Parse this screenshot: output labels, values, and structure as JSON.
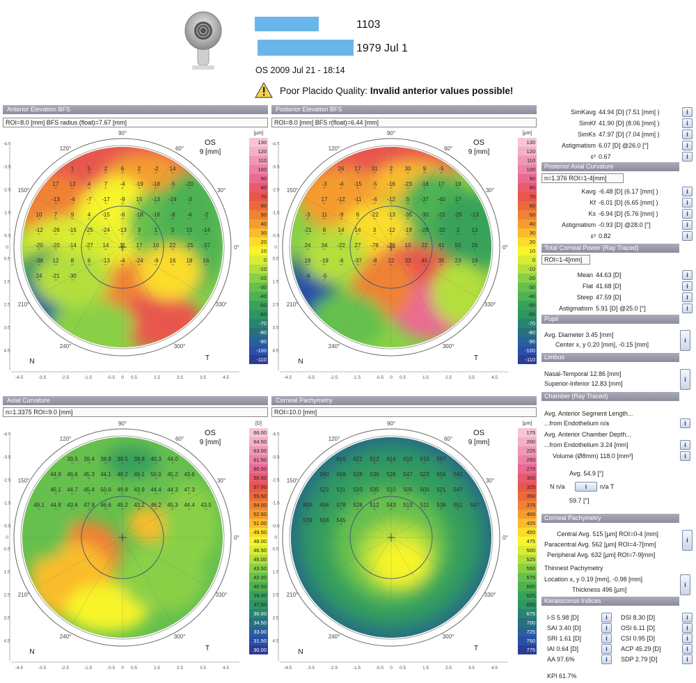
{
  "header": {
    "patient_id": "1103",
    "dob": "1979 Jul 1",
    "exam": "OS 2009 Jul 21 - 18:14",
    "warning_prefix": "Poor Placido Quality: ",
    "warning_bold": "Invalid anterior values possible!"
  },
  "maps": {
    "anterior": {
      "title": "Anterior Elevation BFS",
      "subtitle": "ROI=8.0 [mm] BFS radius (float)=7.67 [mm]",
      "eye": "OS",
      "zone": "9 [mm]",
      "nasal": "N",
      "temporal": "T",
      "unit": "[µm]",
      "scale": [
        "130",
        "120",
        "110",
        "100",
        "90",
        "80",
        "70",
        "60",
        "50",
        "40",
        "30",
        "20",
        "10",
        "0",
        "-10",
        "-20",
        "-30",
        "-40",
        "-50",
        "-60",
        "-70",
        "-80",
        "-90",
        "-100",
        "-110"
      ],
      "values": [
        "1",
        "5",
        "2",
        "6",
        "2",
        "-2",
        "14",
        "17",
        "13",
        "4",
        "7",
        "-4",
        "-19",
        "-18",
        "-5",
        "-20",
        "-13",
        "-4",
        "-7",
        "-17",
        "-9",
        "15",
        "-13",
        "-24",
        "-3",
        "10",
        "7",
        "9",
        "4",
        "-15",
        "-6",
        "-18",
        "-16",
        "-8",
        "-4",
        "-2",
        "-12",
        "-26",
        "-15",
        "-25",
        "-24",
        "-13",
        "3",
        "1",
        "3",
        "15",
        "-14",
        "-20",
        "-20",
        "-14",
        "-27",
        "14",
        "11",
        "17",
        "10",
        "22",
        "-25",
        "-37",
        "-38",
        "12",
        "8",
        "6",
        "-13",
        "-4",
        "-24",
        "-9",
        "16",
        "18",
        "16",
        "24",
        "-21",
        "-30"
      ]
    },
    "posterior": {
      "title": "Posterior Elevation BFS",
      "subtitle": "ROI=8.0 [mm] BFS r(float)=6.44 [mm]",
      "eye": "OS",
      "zone": "9 [mm]",
      "nasal": "N",
      "temporal": "T",
      "unit": "[µm]",
      "scale": [
        "130",
        "120",
        "110",
        "100",
        "90",
        "80",
        "70",
        "60",
        "50",
        "40",
        "30",
        "20",
        "10",
        "0",
        "-10",
        "-20",
        "-30",
        "-40",
        "-50",
        "-60",
        "-70",
        "-80",
        "-90",
        "-100",
        "-110"
      ],
      "values": [
        "26",
        "17",
        "31",
        "2",
        "30",
        "9",
        "-5",
        "-3",
        "-4",
        "-15",
        "-5",
        "-16",
        "-23",
        "-18",
        "17",
        "19",
        "17",
        "-12",
        "-11",
        "-4",
        "-12",
        "5",
        "-37",
        "-40",
        "17",
        "-3",
        "11",
        "-9",
        "6",
        "-22",
        "-13",
        "-35",
        "-30",
        "-22",
        "-25",
        "-13",
        "-21",
        "8",
        "14",
        "14",
        "3",
        "-12",
        "-19",
        "-28",
        "-32",
        "3",
        "13",
        "24",
        "34",
        "-22",
        "27",
        "-78",
        "-76",
        "10",
        "22",
        "41",
        "50",
        "26",
        "19",
        "-19",
        "-6",
        "-37",
        "-8",
        "22",
        "33",
        "45",
        "35",
        "23",
        "19",
        "-6",
        "-5"
      ]
    },
    "axial": {
      "title": "Axial Curvature",
      "subtitle": "n=1.3375 ROI=9.0 [mm]",
      "eye": "OS",
      "zone": "9 [mm]",
      "nasal": "N",
      "temporal": "T",
      "unit": "[D]",
      "scale": [
        "66.00",
        "64.50",
        "63.00",
        "61.50",
        "60.00",
        "58.50",
        "57.00",
        "55.50",
        "54.00",
        "52.50",
        "51.00",
        "49.50",
        "48.00",
        "46.50",
        "45.00",
        "43.50",
        "42.00",
        "40.50",
        "39.00",
        "37.50",
        "36.00",
        "34.50",
        "33.00",
        "31.50",
        "30.00"
      ],
      "values": [
        "39.5",
        "39.4",
        "38.8",
        "39.5",
        "38.8",
        "40.3",
        "44.0",
        "44.9",
        "46.6",
        "45.3",
        "44.1",
        "48.2",
        "49.1",
        "50.0",
        "45.2",
        "43.6",
        "45.1",
        "44.7",
        "45.4",
        "50.6",
        "49.8",
        "43.9",
        "44.4",
        "44.3",
        "47.3",
        "49.1",
        "44.8",
        "43.6",
        "47.9",
        "46.6",
        "45.2",
        "43.2",
        "46.2",
        "45.3",
        "44.4",
        "43.5"
      ]
    },
    "pachy": {
      "title": "Corneal Pachymetry",
      "subtitle": "ROI=10.0 [mm]",
      "eye": "OS",
      "zone": "9 [mm]",
      "nasal": "N",
      "temporal": "T",
      "unit": "[µm]",
      "scale": [
        "175",
        "200",
        "225",
        "250",
        "275",
        "300",
        "325",
        "350",
        "375",
        "400",
        "425",
        "450",
        "475",
        "500",
        "525",
        "550",
        "575",
        "600",
        "625",
        "650",
        "675",
        "700",
        "725",
        "750",
        "775"
      ],
      "values": [
        "616",
        "622",
        "612",
        "614",
        "610",
        "610",
        "597",
        "580",
        "569",
        "528",
        "530",
        "526",
        "547",
        "523",
        "556",
        "541",
        "522",
        "511",
        "533",
        "535",
        "510",
        "505",
        "500",
        "521",
        "547",
        "600",
        "496",
        "578",
        "528",
        "512",
        "543",
        "513",
        "511",
        "536",
        "551",
        "547",
        "539",
        "556",
        "545"
      ]
    },
    "axes": {
      "deg_top": "90°",
      "deg_120": "120°",
      "deg_60": "60°",
      "deg_150": "150°",
      "deg_30": "30°",
      "deg_0": "0°",
      "deg_210": "210°",
      "deg_330": "330°",
      "deg_240": "240°",
      "deg_300": "300°",
      "ticks": [
        "-4.5",
        "-3.5",
        "-2.5",
        "-1.5",
        "-0.5",
        "0",
        "0.5",
        "1.5",
        "2.5",
        "3.5",
        "4.5"
      ]
    }
  },
  "right_panel": {
    "ant_rows": [
      {
        "label": "SimKavg",
        "value": "44.94 [D]  (7.51 [mm] )"
      },
      {
        "label": "SimKf",
        "value": "41.90 [D]  (8.06 [mm] )"
      },
      {
        "label": "SimKs",
        "value": "47.97 [D]  (7.04 [mm] )"
      },
      {
        "label": "Astigmatism",
        "value": "6.07 [D] @26.0 [°]"
      },
      {
        "label": "ε²",
        "value": "0.67"
      }
    ],
    "posterior_title": "Posterior Axial Curvature",
    "posterior_box": "n=1.376  ROI=1-4[mm]",
    "post_rows": [
      {
        "label": "Kavg",
        "value": "-6.48 [D]  (6.17 [mm] )"
      },
      {
        "label": "Kf",
        "value": "-6.01 [D]  (6.65 [mm] )"
      },
      {
        "label": "Ks",
        "value": "-6.94 [D]  (5.76 [mm] )"
      },
      {
        "label": "Astigmatism",
        "value": "-0.93 [D] @28.0 [°]"
      },
      {
        "label": "ε²",
        "value": "0.82"
      }
    ],
    "tcp_title": "Total Corneal Power (Ray Traced)",
    "tcp_box": "ROI=1-4[mm]",
    "tcp_rows": [
      {
        "label": "Mean",
        "value": "44.63 [D]"
      },
      {
        "label": "Flat",
        "value": "41.68 [D]"
      },
      {
        "label": "Steep",
        "value": "47.59 [D]"
      },
      {
        "label": "Astigmatism",
        "value": "5.91 [D] @25.0 [°]"
      }
    ],
    "pupil_title": "Pupil",
    "pupil_diam": "Avg. Diameter  3.45 [mm]",
    "pupil_center": "Center x, y  0.20 [mm], -0.15 [mm]",
    "limbus_title": "Limbus",
    "limbus_nt": "Nasal-Temporal  12.86 [mm]",
    "limbus_si": "Superior-Inferior  12.83 [mm]",
    "chamber_title": "Chamber (Ray Traced)",
    "ch_seg": "Avg. Anterior Segment Length...",
    "ch_seg_endo": "...from Endothelium  n/a",
    "ch_depth": "Avg. Anterior Chamber Depth...",
    "ch_depth_endo": "...from Endothelium  3.24 [mm]",
    "ch_volume": "Volume (Ø8mm)  118.0 [mm³]",
    "angle_avg": "Avg.   54.9 [°]",
    "angle_n": "N  n/a",
    "angle_t": "n/a  T",
    "angle_val": "59.7 [°]",
    "cp_title": "Corneal Pachymetry",
    "cp_central": "Central Avg.  515 [µm] ROI=0-4 [mm]",
    "cp_para": "Paracentral Avg.  562 [µm] ROI=4-7[mm]",
    "cp_peri": "Peripheral Avg.  632 [µm] ROI=7-9[mm]",
    "thin_title": "Thinnest Pachymetry",
    "thin_loc": "Location x, y  0.19 [mm], -0.98 [mm]",
    "thin_val": "Thickness  496 [µm]",
    "kc_title": "Keratoconus Indices",
    "kc_left": [
      "I-S  5.98 [D]",
      "SAI  3.40 [D]",
      "SRI  1.61 [D]",
      "IAI  0.64 [D]",
      "AA  97.6%"
    ],
    "kc_right": [
      "DSI  8.30 [D]",
      "OSI  6.11 [D]",
      "CSI  0.95 [D]",
      "ACP  45.29 [D]",
      "SDP  2.79 [D]"
    ],
    "kpi": "KPI  61.7%",
    "info_glyph": "i"
  },
  "colors": {
    "title_bar": "#9c9cab",
    "redaction": "#6ab6ea",
    "info_button": "#1b3c8a"
  }
}
